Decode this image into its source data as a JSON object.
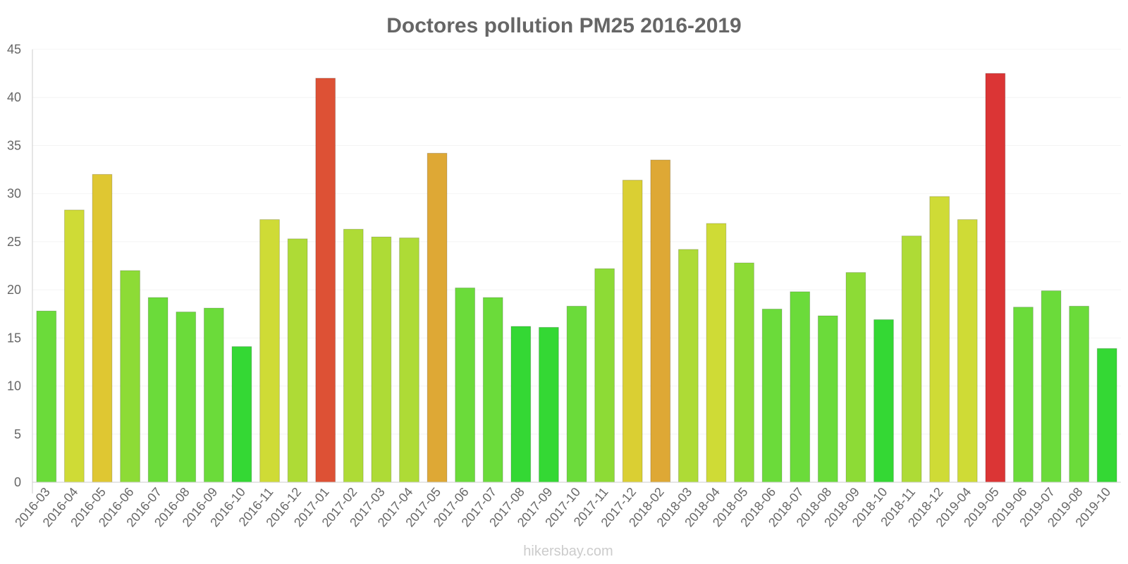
{
  "chart_data": {
    "type": "bar",
    "title": "Doctores pollution PM25 2016-2019",
    "xlabel": "",
    "ylabel": "",
    "ylim": [
      0,
      45
    ],
    "yticks": [
      0,
      5,
      10,
      15,
      20,
      25,
      30,
      35,
      40,
      45
    ],
    "grid": true,
    "legend": "none",
    "categories": [
      "2016-03",
      "2016-04",
      "2016-05",
      "2016-06",
      "2016-07",
      "2016-08",
      "2016-09",
      "2016-10",
      "2016-11",
      "2016-12",
      "2017-01",
      "2017-02",
      "2017-03",
      "2017-04",
      "2017-05",
      "2017-06",
      "2017-07",
      "2017-08",
      "2017-09",
      "2017-10",
      "2017-11",
      "2017-12",
      "2018-02",
      "2018-03",
      "2018-04",
      "2018-05",
      "2018-06",
      "2018-07",
      "2018-08",
      "2018-09",
      "2018-10",
      "2018-11",
      "2018-12",
      "2019-04",
      "2019-05",
      "2019-06",
      "2019-07",
      "2019-08",
      "2019-10"
    ],
    "values": [
      17.8,
      28.3,
      32.0,
      22.0,
      19.2,
      17.7,
      18.1,
      14.1,
      27.3,
      25.3,
      42.0,
      26.3,
      25.5,
      25.4,
      34.2,
      20.2,
      19.2,
      16.2,
      16.1,
      18.3,
      22.2,
      31.4,
      33.5,
      24.2,
      26.9,
      22.8,
      18.0,
      19.8,
      17.3,
      21.8,
      16.9,
      25.6,
      29.7,
      27.3,
      42.5,
      18.2,
      19.9,
      18.3,
      13.9
    ],
    "colors": [
      "#6bdb3a",
      "#cfdb36",
      "#dfc732",
      "#8ddb36",
      "#6bdb3a",
      "#6bdb3a",
      "#6bdb3a",
      "#34d834",
      "#cfdb36",
      "#aedb36",
      "#dd5135",
      "#aedb36",
      "#aedb36",
      "#aedb36",
      "#dea835",
      "#6bdb3a",
      "#6bdb3a",
      "#34d834",
      "#34d834",
      "#6bdb3a",
      "#8ddb36",
      "#dacf33",
      "#dea835",
      "#aedb36",
      "#cfdb36",
      "#8ddb36",
      "#6bdb3a",
      "#6bdb3a",
      "#6bdb3a",
      "#8ddb36",
      "#34d834",
      "#aedb36",
      "#cfdb36",
      "#cfdb36",
      "#db3535",
      "#6bdb3a",
      "#6bdb3a",
      "#6bdb3a",
      "#34d834"
    ],
    "watermark": "hikersbay.com"
  },
  "style": {
    "axis_color": "#cccccc",
    "grid_color": "#f4f4f4",
    "text_color": "#666666"
  }
}
